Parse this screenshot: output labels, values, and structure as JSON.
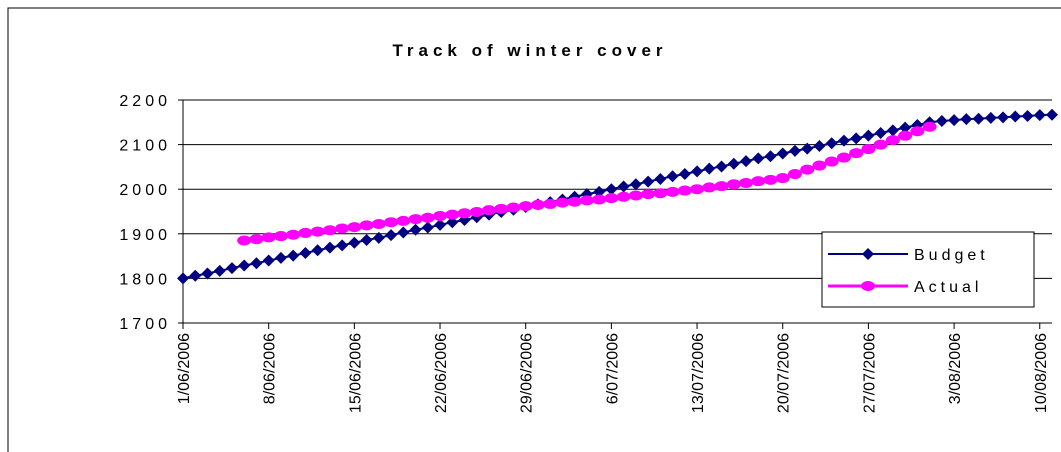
{
  "chart_data": {
    "type": "line",
    "title": "Track of winter cover",
    "x": [
      "1/06/2006",
      "2/06/2006",
      "3/06/2006",
      "4/06/2006",
      "5/06/2006",
      "6/06/2006",
      "7/06/2006",
      "8/06/2006",
      "9/06/2006",
      "10/06/2006",
      "11/06/2006",
      "12/06/2006",
      "13/06/2006",
      "14/06/2006",
      "15/06/2006",
      "16/06/2006",
      "17/06/2006",
      "18/06/2006",
      "19/06/2006",
      "20/06/2006",
      "21/06/2006",
      "22/06/2006",
      "23/06/2006",
      "24/06/2006",
      "25/06/2006",
      "26/06/2006",
      "27/06/2006",
      "28/06/2006",
      "29/06/2006",
      "30/06/2006",
      "1/07/2006",
      "2/07/2006",
      "3/07/2006",
      "4/07/2006",
      "5/07/2006",
      "6/07/2006",
      "7/07/2006",
      "8/07/2006",
      "9/07/2006",
      "10/07/2006",
      "11/07/2006",
      "12/07/2006",
      "13/07/2006",
      "14/07/2006",
      "15/07/2006",
      "16/07/2006",
      "17/07/2006",
      "18/07/2006",
      "19/07/2006",
      "20/07/2006",
      "21/07/2006",
      "22/07/2006",
      "23/07/2006",
      "24/07/2006",
      "25/07/2006",
      "26/07/2006",
      "27/07/2006",
      "28/07/2006",
      "29/07/2006",
      "30/07/2006",
      "31/07/2006",
      "1/08/2006",
      "2/08/2006",
      "3/08/2006",
      "4/08/2006",
      "5/08/2006",
      "6/08/2006",
      "7/08/2006",
      "8/08/2006",
      "9/08/2006",
      "10/08/2006",
      "11/08/2006"
    ],
    "xticks": [
      "1/06/2006",
      "8/06/2006",
      "15/06/2006",
      "22/06/2006",
      "29/06/2006",
      "6/07/2006",
      "13/07/2006",
      "20/07/2006",
      "27/07/2006",
      "3/08/2006",
      "10/08/2006"
    ],
    "series": [
      {
        "name": "Budget",
        "color": "#000080",
        "marker": "diamond",
        "values": [
          1800,
          1806,
          1811,
          1817,
          1823,
          1829,
          1834,
          1840,
          1846,
          1851,
          1857,
          1863,
          1869,
          1874,
          1880,
          1886,
          1891,
          1897,
          1903,
          1909,
          1914,
          1920,
          1926,
          1931,
          1937,
          1943,
          1949,
          1954,
          1960,
          1966,
          1971,
          1977,
          1983,
          1989,
          1994,
          2000,
          2006,
          2011,
          2017,
          2023,
          2029,
          2034,
          2040,
          2046,
          2051,
          2057,
          2063,
          2069,
          2074,
          2080,
          2086,
          2091,
          2097,
          2103,
          2109,
          2114,
          2120,
          2126,
          2132,
          2138,
          2144,
          2150,
          2153,
          2155,
          2157,
          2158,
          2160,
          2161,
          2163,
          2164,
          2166,
          2167
        ]
      },
      {
        "name": "Actual",
        "color": "#FF00FF",
        "marker": "circle",
        "values": [
          null,
          null,
          null,
          null,
          null,
          1885,
          1888,
          1892,
          1895,
          1898,
          1902,
          1905,
          1908,
          1912,
          1915,
          1919,
          1922,
          1926,
          1929,
          1933,
          1936,
          1940,
          1943,
          1946,
          1949,
          1953,
          1956,
          1959,
          1962,
          1965,
          1967,
          1970,
          1972,
          1975,
          1977,
          1980,
          1983,
          1986,
          1989,
          1991,
          1994,
          1997,
          2000,
          2004,
          2007,
          2011,
          2014,
          2018,
          2021,
          2025,
          2034,
          2044,
          2053,
          2062,
          2071,
          2081,
          2090,
          2100,
          2110,
          2120,
          2130,
          2140,
          null,
          null,
          null,
          null,
          null,
          null,
          null,
          null,
          null,
          null
        ]
      }
    ],
    "ylim": [
      1700,
      2200
    ],
    "yticks": [
      1700,
      1800,
      1900,
      2000,
      2100,
      2200
    ],
    "grid": true,
    "legend": "right"
  }
}
